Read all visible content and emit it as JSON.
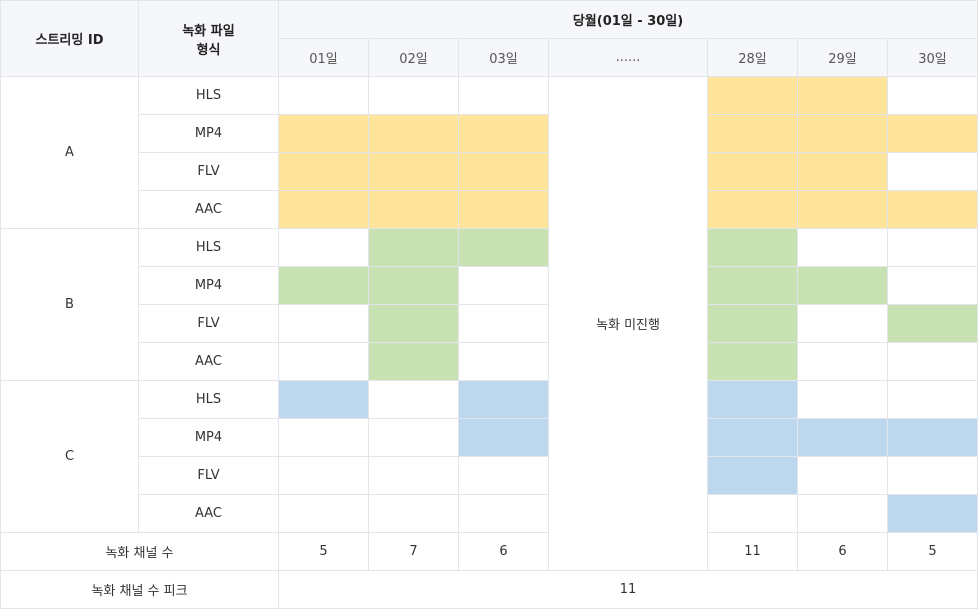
{
  "colors": {
    "A": "#ffe49c",
    "B": "#c8e2b3",
    "C": "#bdd7ee"
  },
  "header": {
    "streaming_id": "스트리밍 ID",
    "format_line1": "녹화 파일",
    "format_line2": "형식",
    "month": "당월(01일 - 30일)",
    "days": [
      "01일",
      "02일",
      "03일",
      "......",
      "28일",
      "29일",
      "30일"
    ]
  },
  "groups": [
    {
      "id": "A",
      "rows": [
        {
          "format": "HLS",
          "cells": [
            0,
            0,
            0,
            1,
            1,
            0
          ]
        },
        {
          "format": "MP4",
          "cells": [
            1,
            1,
            1,
            1,
            1,
            1
          ]
        },
        {
          "format": "FLV",
          "cells": [
            1,
            1,
            1,
            1,
            1,
            0
          ]
        },
        {
          "format": "AAC",
          "cells": [
            1,
            1,
            1,
            1,
            1,
            1
          ]
        }
      ]
    },
    {
      "id": "B",
      "rows": [
        {
          "format": "HLS",
          "cells": [
            0,
            1,
            1,
            1,
            0,
            0
          ]
        },
        {
          "format": "MP4",
          "cells": [
            1,
            1,
            0,
            1,
            1,
            0
          ]
        },
        {
          "format": "FLV",
          "cells": [
            0,
            1,
            0,
            1,
            0,
            1
          ]
        },
        {
          "format": "AAC",
          "cells": [
            0,
            1,
            0,
            1,
            0,
            0
          ]
        }
      ]
    },
    {
      "id": "C",
      "rows": [
        {
          "format": "HLS",
          "cells": [
            1,
            0,
            1,
            1,
            0,
            0
          ]
        },
        {
          "format": "MP4",
          "cells": [
            0,
            0,
            1,
            1,
            1,
            1
          ]
        },
        {
          "format": "FLV",
          "cells": [
            0,
            0,
            0,
            1,
            0,
            0
          ]
        },
        {
          "format": "AAC",
          "cells": [
            0,
            0,
            0,
            0,
            0,
            1
          ]
        }
      ]
    }
  ],
  "no_recording": "녹화 미진행",
  "channel_count": {
    "label": "녹화 채널 수",
    "values": [
      "5",
      "7",
      "6",
      "11",
      "6",
      "5"
    ]
  },
  "peak": {
    "label": "녹화 채널 수 피크",
    "value": "11"
  }
}
